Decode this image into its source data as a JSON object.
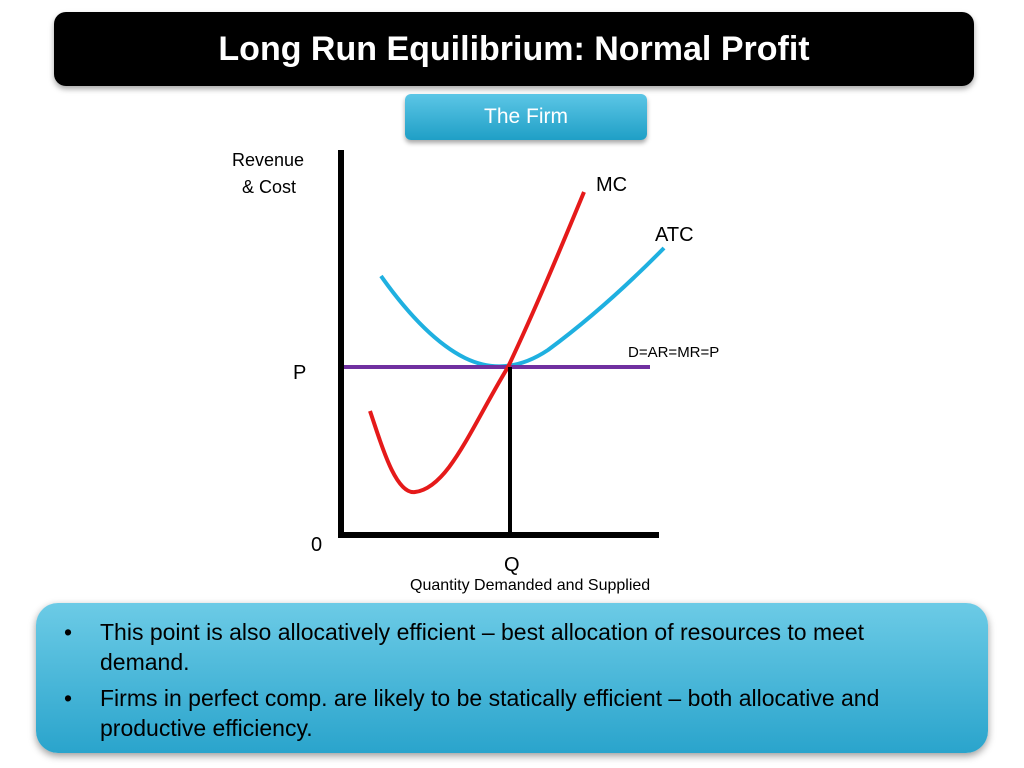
{
  "title": "Long Run Equilibrium: Normal Profit",
  "tab_label": "The Firm",
  "diagram": {
    "y_axis_label_line1": "Revenue",
    "y_axis_label_line2": "& Cost",
    "origin_label": "0",
    "price_label": "P",
    "quantity_label": "Q",
    "x_axis_label": "Quantity Demanded and Supplied",
    "curves": {
      "mc": {
        "label": "MC",
        "color": "#e51a1a"
      },
      "atc": {
        "label": "ATC",
        "color": "#1fb0e0"
      },
      "demand": {
        "label": "D=AR=MR=P",
        "color": "#7030a0"
      }
    }
  },
  "bullets": [
    {
      "marker": "•",
      "text": "This point is also allocatively efficient – best allocation of resources to meet demand."
    },
    {
      "marker": "•",
      "text": "Firms in perfect comp. are likely to be statically efficient – both allocative and productive efficiency."
    }
  ],
  "colors": {
    "title_bg": "#000000",
    "accent": "#2aa4cc"
  }
}
